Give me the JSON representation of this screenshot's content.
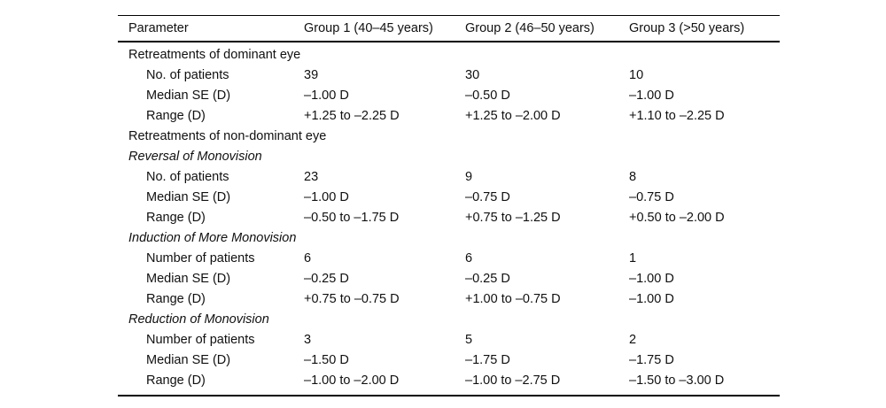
{
  "table": {
    "columns": [
      "Parameter",
      "Group 1 (40–45 years)",
      "Group 2 (46–50 years)",
      "Group 3 (>50 years)"
    ],
    "rows": [
      {
        "type": "section",
        "label": "Retreatments of dominant eye",
        "values": [
          "",
          "",
          ""
        ]
      },
      {
        "type": "data",
        "label": "No. of patients",
        "values": [
          "39",
          "30",
          "10"
        ]
      },
      {
        "type": "data",
        "label": "Median SE (D)",
        "values": [
          "–1.00 D",
          "–0.50 D",
          "–1.00 D"
        ]
      },
      {
        "type": "data",
        "label": "Range (D)",
        "values": [
          "+1.25 to –2.25 D",
          "+1.25 to –2.00 D",
          "+1.10 to –2.25 D"
        ]
      },
      {
        "type": "section",
        "label": "Retreatments of non-dominant eye",
        "values": [
          "",
          "",
          ""
        ]
      },
      {
        "type": "subsection",
        "label": "Reversal of Monovision",
        "values": [
          "",
          "",
          ""
        ]
      },
      {
        "type": "data",
        "label": "No. of patients",
        "values": [
          "23",
          "9",
          "8"
        ]
      },
      {
        "type": "data",
        "label": "Median SE (D)",
        "values": [
          "–1.00 D",
          "–0.75 D",
          "–0.75 D"
        ]
      },
      {
        "type": "data",
        "label": "Range (D)",
        "values": [
          "–0.50 to –1.75 D",
          "+0.75 to –1.25 D",
          "+0.50 to –2.00 D"
        ]
      },
      {
        "type": "subsection",
        "label": "Induction of More Monovision",
        "values": [
          "",
          "",
          ""
        ]
      },
      {
        "type": "data",
        "label": "Number of patients",
        "values": [
          "6",
          "6",
          "1"
        ]
      },
      {
        "type": "data",
        "label": "Median SE (D)",
        "values": [
          "–0.25 D",
          "–0.25 D",
          "–1.00 D"
        ]
      },
      {
        "type": "data",
        "label": "Range (D)",
        "values": [
          "+0.75 to –0.75 D",
          "+1.00 to –0.75 D",
          "–1.00 D"
        ]
      },
      {
        "type": "subsection",
        "label": "Reduction of Monovision",
        "values": [
          "",
          "",
          ""
        ]
      },
      {
        "type": "data",
        "label": "Number of patients",
        "values": [
          "3",
          "5",
          "2"
        ]
      },
      {
        "type": "data",
        "label": "Median SE (D)",
        "values": [
          "–1.50 D",
          "–1.75 D",
          "–1.75 D"
        ]
      },
      {
        "type": "data",
        "label": "Range (D)",
        "values": [
          "–1.00 to –2.00 D",
          "–1.00 to –2.75 D",
          "–1.50 to –3.00 D"
        ]
      }
    ]
  }
}
